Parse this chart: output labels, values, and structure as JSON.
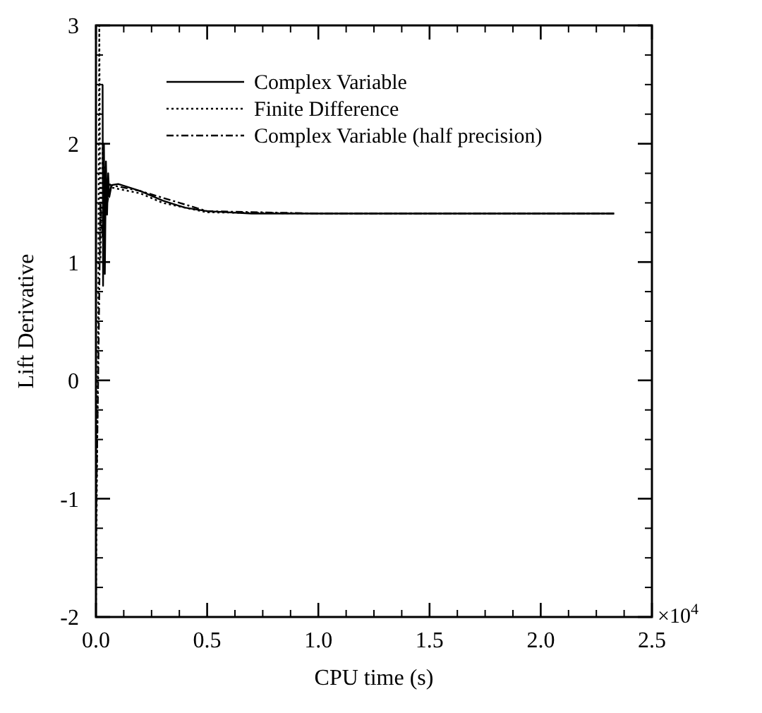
{
  "chart_data": {
    "type": "line",
    "xlabel": "CPU time (s)",
    "ylabel": "Lift Derivative",
    "xlim": [
      0,
      2.5
    ],
    "xticks": [
      {
        "value": 0,
        "label": "0.0"
      },
      {
        "value": 0.5,
        "label": "0.5"
      },
      {
        "value": 1,
        "label": "1.0"
      },
      {
        "value": 1.5,
        "label": "1.5"
      },
      {
        "value": 2,
        "label": "2.0"
      },
      {
        "value": 2.5,
        "label": "2.5"
      }
    ],
    "ylim": [
      -2,
      3
    ],
    "yticks": [
      -2,
      -1,
      0,
      1,
      2,
      3
    ],
    "grid": false,
    "legend": "top left",
    "marker": "none",
    "annotations": [
      "×10$^{4}$"
    ],
    "series": [
      {
        "name": "Complex Variable",
        "color": "#000000",
        "line_style": "solid",
        "x": [
          0.03,
          0.032,
          0.036,
          0.04,
          0.045,
          0.05,
          0.055,
          0.06,
          0.07,
          0.1,
          0.2,
          0.3,
          0.4,
          0.5,
          0.7,
          1.0,
          2.33
        ],
        "values": [
          2.5,
          0.8,
          2.0,
          0.9,
          1.85,
          1.4,
          1.75,
          1.55,
          1.65,
          1.66,
          1.6,
          1.52,
          1.46,
          1.43,
          1.41,
          1.41,
          1.41
        ]
      },
      {
        "name": "Finite Difference",
        "color": "#000000",
        "line_style": "dotted",
        "x": [
          0.0,
          0.01,
          0.015,
          0.02,
          0.03,
          0.04,
          0.05,
          0.07,
          0.2,
          0.3,
          0.5,
          1.0,
          2.33
        ],
        "values": [
          -1.9,
          0.5,
          3.0,
          1.0,
          2.0,
          1.5,
          1.7,
          1.63,
          1.58,
          1.5,
          1.42,
          1.41,
          1.41
        ]
      },
      {
        "name": "Complex Variable (half precision)",
        "color": "#000000",
        "line_style": "dashed",
        "x": [
          0.0,
          0.01,
          0.02,
          0.03,
          0.04,
          0.05,
          0.07,
          0.2,
          0.5,
          1.0,
          2.33
        ],
        "values": [
          -1.2,
          0.0,
          1.5,
          1.2,
          1.8,
          1.5,
          1.65,
          1.6,
          1.43,
          1.41,
          1.41
        ]
      }
    ]
  }
}
